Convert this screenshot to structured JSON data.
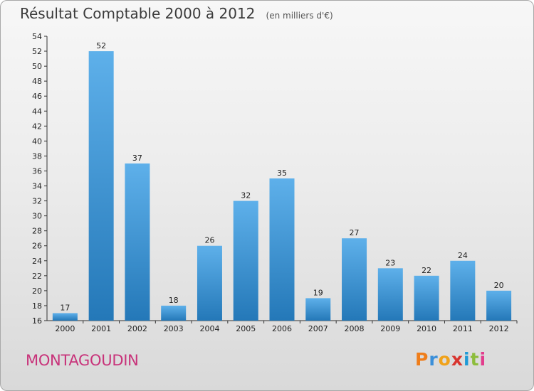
{
  "header": {
    "title": "Résultat Comptable 2000 à 2012",
    "subtitle": "(en milliers d'€)"
  },
  "footer": {
    "town": "MONTAGOUDIN",
    "logo_text": "Proxiti"
  },
  "colors": {
    "bar_top": "#5eb0ea",
    "bar_bottom": "#2478b8",
    "town": "#c8337a",
    "logo": [
      "#ef7d1a",
      "#3a8fd9",
      "#f0a21a",
      "#d8352f",
      "#1e9ad6",
      "#8dbd3c",
      "#e23c8c"
    ]
  },
  "chart_data": {
    "type": "bar",
    "categories": [
      "2000",
      "2001",
      "2002",
      "2003",
      "2004",
      "2005",
      "2006",
      "2007",
      "2008",
      "2009",
      "2010",
      "2011",
      "2012"
    ],
    "values": [
      17,
      52,
      37,
      18,
      26,
      32,
      35,
      19,
      27,
      23,
      22,
      24,
      20
    ],
    "title": "Résultat Comptable 2000 à 2012",
    "subtitle": "(en milliers d'€)",
    "xlabel": "",
    "ylabel": "",
    "ylim": [
      16,
      54
    ],
    "ytick_step": 2,
    "grid": false,
    "legend": "none"
  }
}
